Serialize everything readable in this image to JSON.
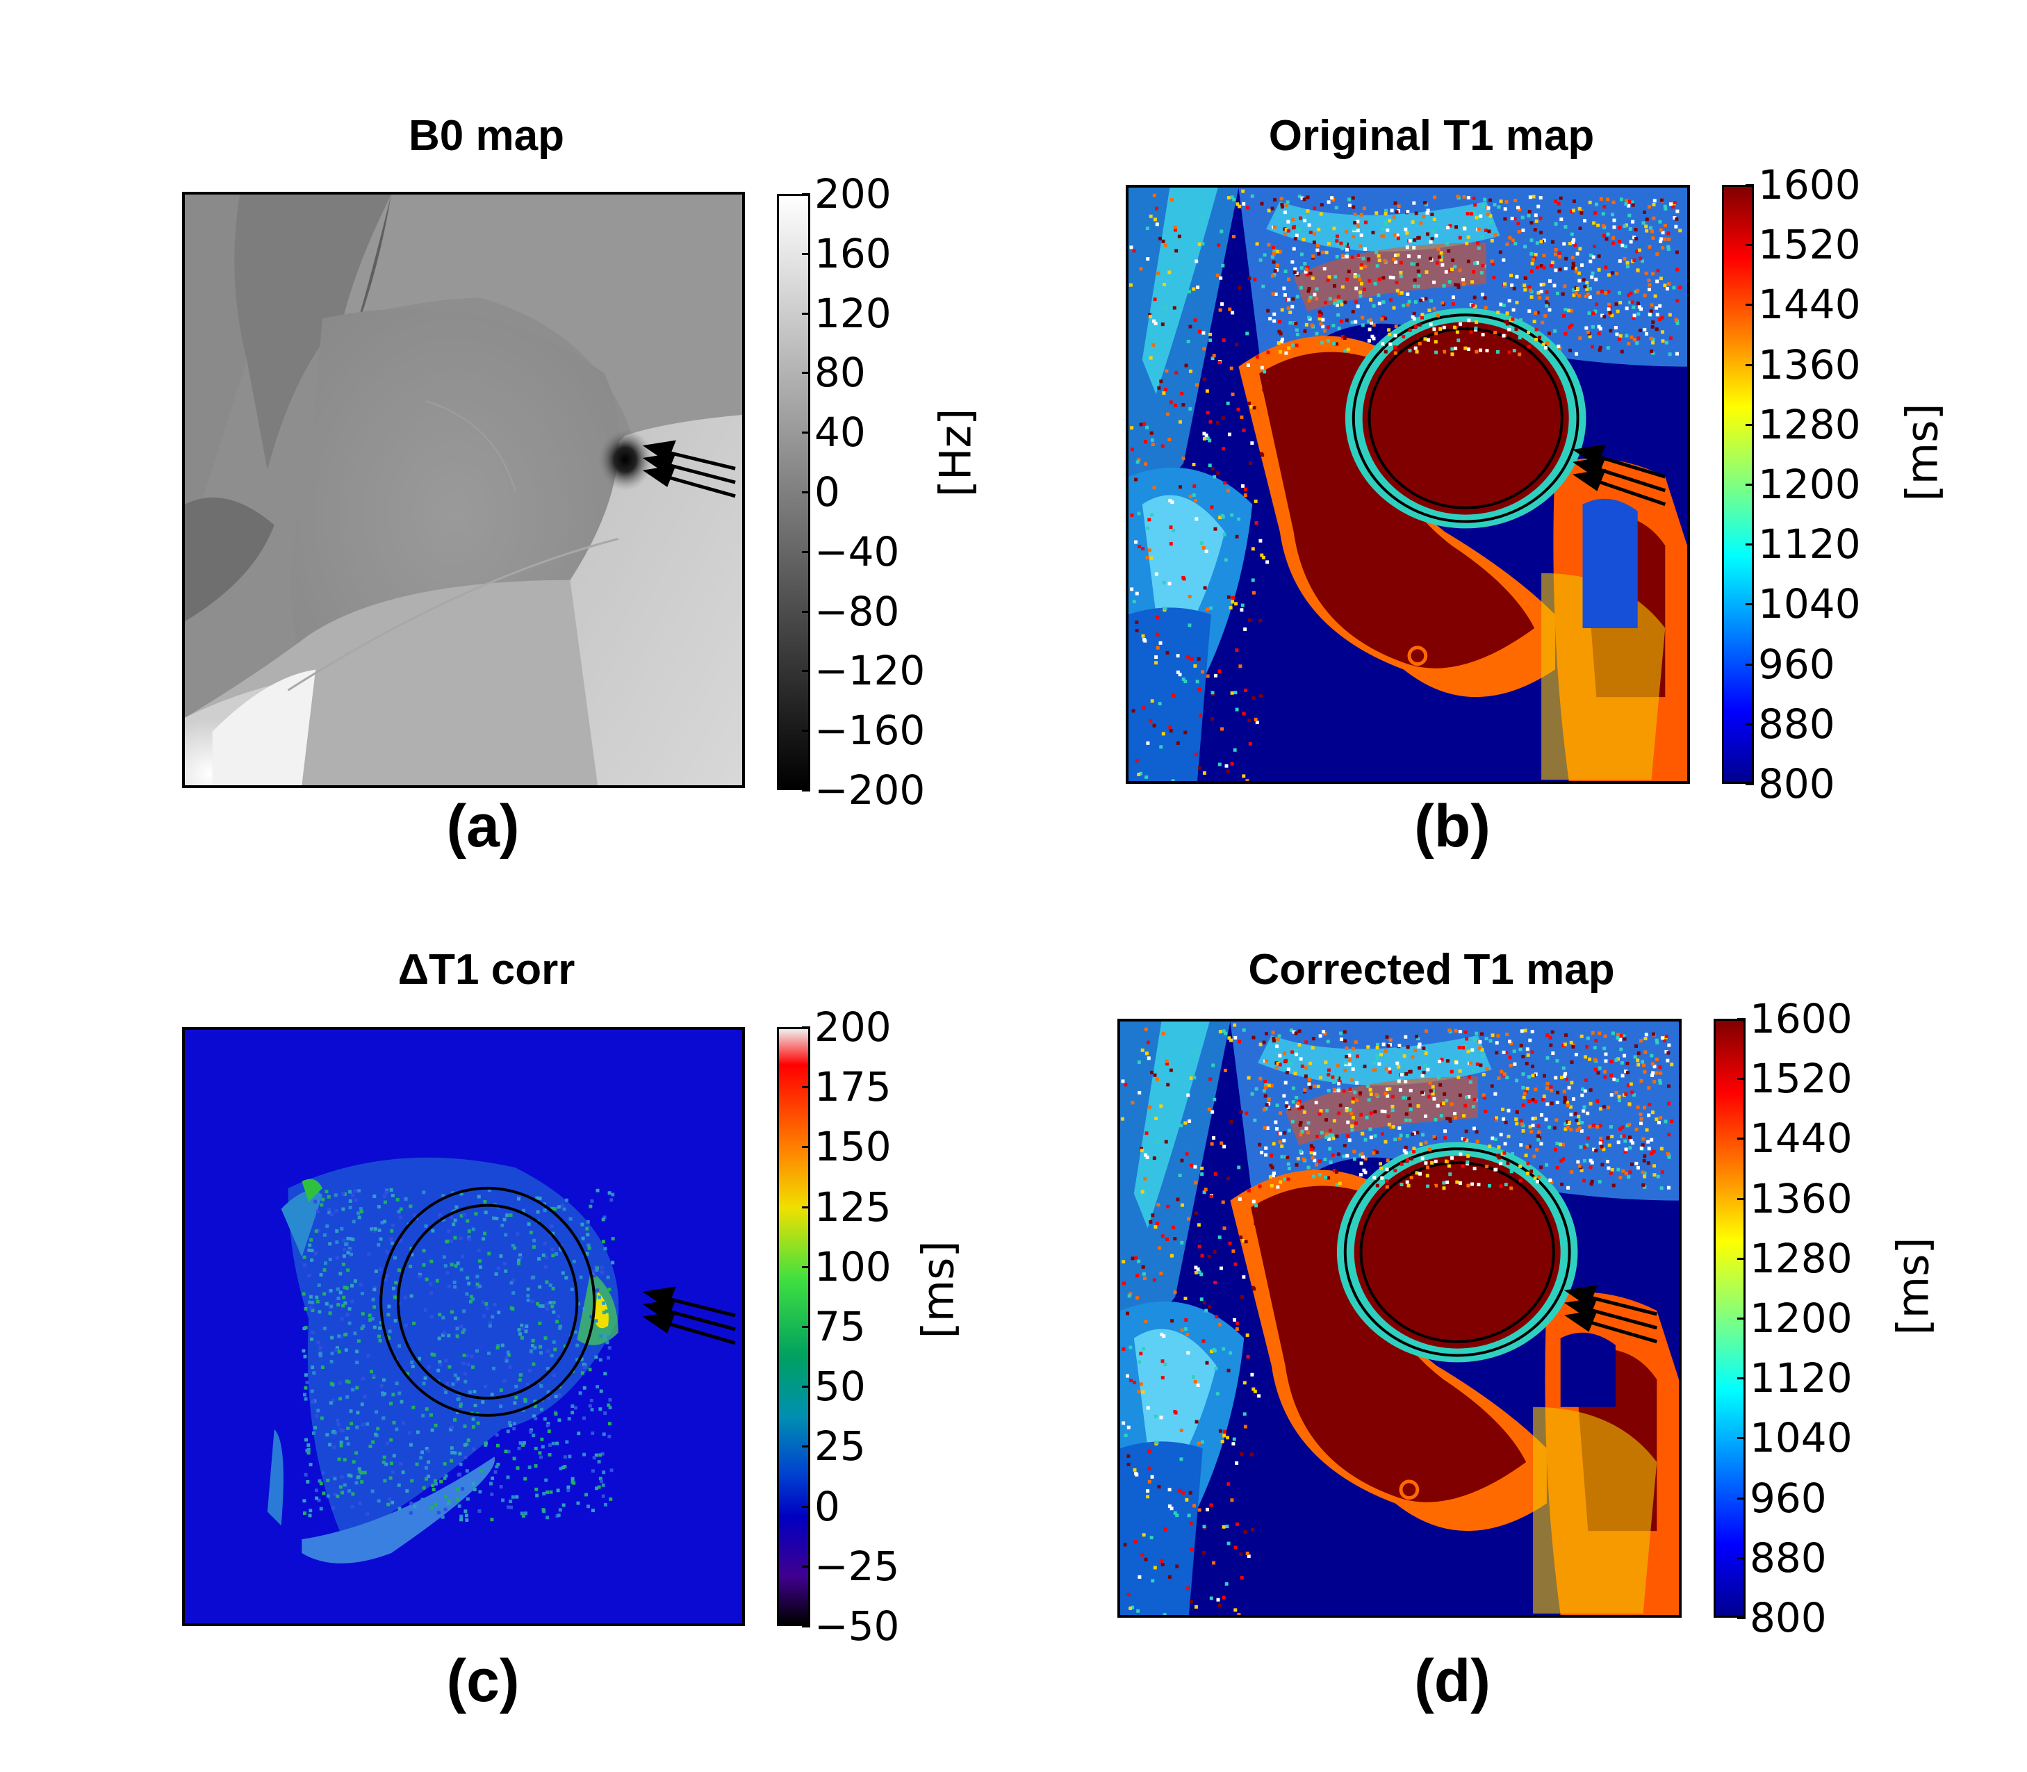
{
  "panels": [
    {
      "id": "a",
      "title": "B0 map",
      "caption": "(a)",
      "colormap": "gray",
      "colorbar": {
        "ticks": [
          "200",
          "160",
          "120",
          "80",
          "40",
          "0",
          "−40",
          "−80",
          "−120",
          "−160",
          "−200"
        ],
        "unit": "[Hz]"
      }
    },
    {
      "id": "b",
      "title": "Original T1 map",
      "caption": "(b)",
      "colormap": "jet",
      "colorbar": {
        "ticks": [
          "1600",
          "1520",
          "1440",
          "1360",
          "1280",
          "1200",
          "1120",
          "1040",
          "960",
          "880",
          "800"
        ],
        "unit": "[ms]"
      }
    },
    {
      "id": "c",
      "title": "ΔT1 corr",
      "caption": "(c)",
      "colormap": "spectral",
      "colorbar": {
        "ticks": [
          "200",
          "175",
          "150",
          "125",
          "100",
          "75",
          "50",
          "25",
          "0",
          "−25",
          "−50"
        ],
        "unit": "[ms]"
      }
    },
    {
      "id": "d",
      "title": "Corrected T1 map",
      "caption": "(d)",
      "colormap": "jet",
      "colorbar": {
        "ticks": [
          "1600",
          "1520",
          "1440",
          "1360",
          "1280",
          "1200",
          "1120",
          "1040",
          "960",
          "880",
          "800"
        ],
        "unit": "[ms]"
      }
    }
  ],
  "colors": {
    "jet_dark_red": "#800000",
    "jet_dark_blue": "#00008f",
    "spectral_blue": "#0a0ad2"
  }
}
